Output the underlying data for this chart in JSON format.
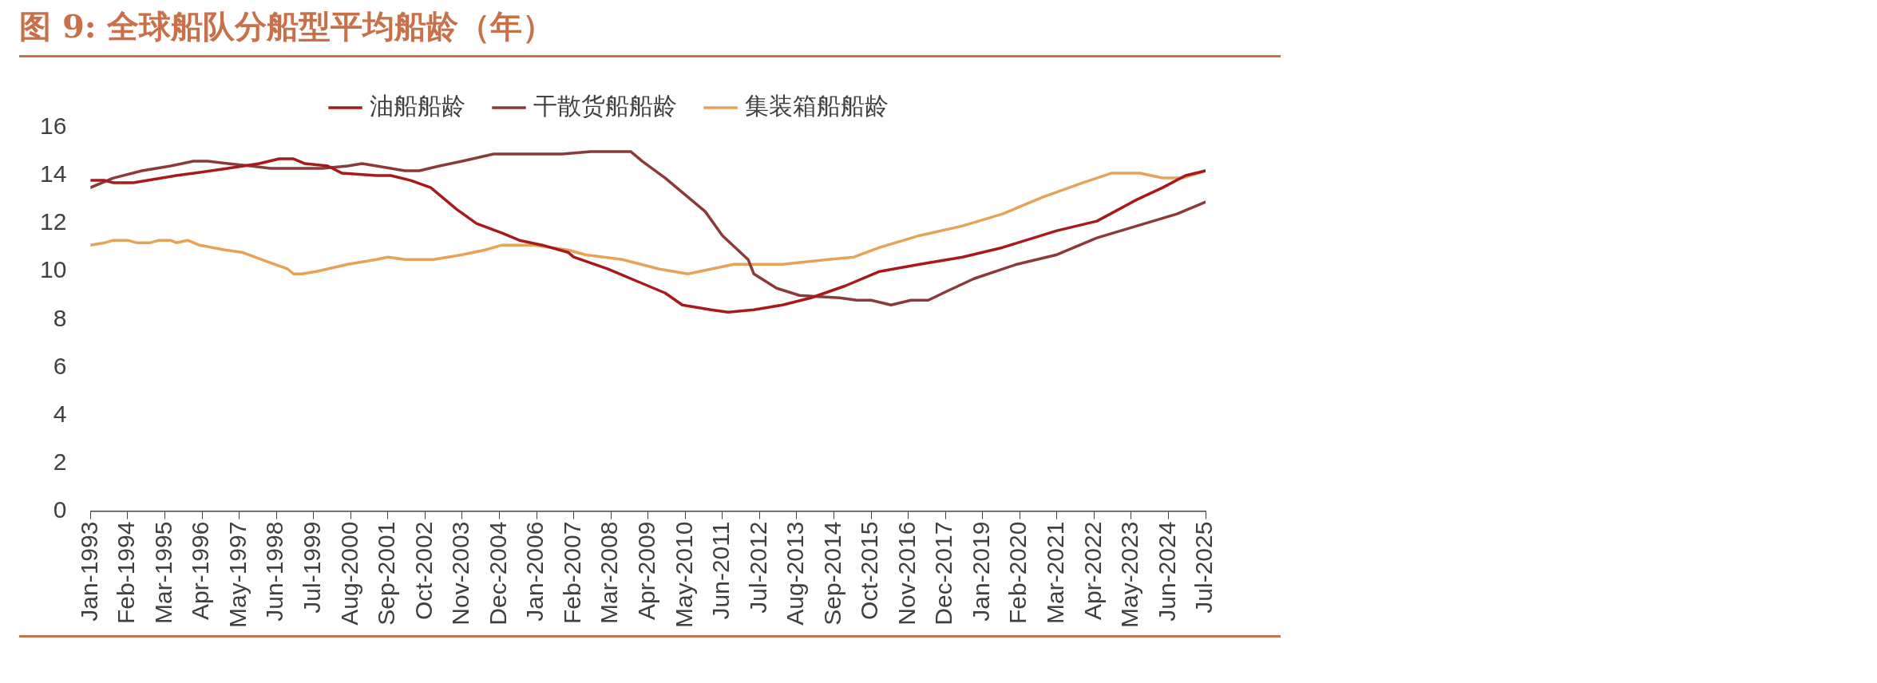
{
  "chart_data": {
    "type": "line",
    "title": "图 9: 全球船队分船型平均船龄（年）",
    "legend": "top",
    "grid": false,
    "marker": "none",
    "line_style": "solid",
    "xlim": [
      "1993-01",
      "2025-07"
    ],
    "xticks": [
      {
        "value": "1993-01",
        "label": "Jan-1993"
      },
      {
        "value": "1994-02",
        "label": "Feb-1994"
      },
      {
        "value": "1995-03",
        "label": "Mar-1995"
      },
      {
        "value": "1996-04",
        "label": "Apr-1996"
      },
      {
        "value": "1997-05",
        "label": "May-1997"
      },
      {
        "value": "1998-06",
        "label": "Jun-1998"
      },
      {
        "value": "1999-07",
        "label": "Jul-1999"
      },
      {
        "value": "2000-08",
        "label": "Aug-2000"
      },
      {
        "value": "2001-09",
        "label": "Sep-2001"
      },
      {
        "value": "2002-10",
        "label": "Oct-2002"
      },
      {
        "value": "2003-11",
        "label": "Nov-2003"
      },
      {
        "value": "2004-12",
        "label": "Dec-2004"
      },
      {
        "value": "2006-01",
        "label": "Jan-2006"
      },
      {
        "value": "2007-02",
        "label": "Feb-2007"
      },
      {
        "value": "2008-03",
        "label": "Mar-2008"
      },
      {
        "value": "2009-04",
        "label": "Apr-2009"
      },
      {
        "value": "2010-05",
        "label": "May-2010"
      },
      {
        "value": "2011-06",
        "label": "Jun-2011"
      },
      {
        "value": "2012-07",
        "label": "Jul-2012"
      },
      {
        "value": "2013-08",
        "label": "Aug-2013"
      },
      {
        "value": "2014-09",
        "label": "Sep-2014"
      },
      {
        "value": "2015-10",
        "label": "Oct-2015"
      },
      {
        "value": "2016-11",
        "label": "Nov-2016"
      },
      {
        "value": "2017-12",
        "label": "Dec-2017"
      },
      {
        "value": "2019-01",
        "label": "Jan-2019"
      },
      {
        "value": "2020-02",
        "label": "Feb-2020"
      },
      {
        "value": "2021-03",
        "label": "Mar-2021"
      },
      {
        "value": "2022-04",
        "label": "Apr-2022"
      },
      {
        "value": "2023-05",
        "label": "May-2023"
      },
      {
        "value": "2024-06",
        "label": "Jun-2024"
      },
      {
        "value": "2025-07",
        "label": "Jul-2025"
      }
    ],
    "ylim": [
      0,
      16
    ],
    "yticks": [
      0,
      2,
      4,
      6,
      8,
      10,
      12,
      14,
      16
    ],
    "series": [
      {
        "name": "油船船龄",
        "color": "#a8191c",
        "x": [
          "1993-01",
          "1993-06",
          "1993-09",
          "1994-04",
          "1995-07",
          "1997-01",
          "1997-12",
          "1998-07",
          "1998-12",
          "1999-04",
          "1999-12",
          "2000-05",
          "2001-05",
          "2001-10",
          "2002-05",
          "2002-12",
          "2003-09",
          "2004-04",
          "2005-01",
          "2005-07",
          "2006-03",
          "2006-12",
          "2007-02",
          "2008-02",
          "2008-12",
          "2009-10",
          "2010-04",
          "2011-02",
          "2011-08",
          "2012-05",
          "2013-03",
          "2014-01",
          "2015-01",
          "2016-01",
          "2017-03",
          "2018-06",
          "2019-08",
          "2021-03",
          "2022-05",
          "2023-07",
          "2024-04",
          "2024-12",
          "2025-07"
        ],
        "values": [
          13.8,
          13.8,
          13.7,
          13.7,
          14.0,
          14.3,
          14.5,
          14.7,
          14.7,
          14.5,
          14.4,
          14.1,
          14.0,
          14.0,
          13.8,
          13.5,
          12.6,
          12.0,
          11.6,
          11.3,
          11.1,
          10.8,
          10.6,
          10.1,
          9.6,
          9.1,
          8.6,
          8.4,
          8.3,
          8.4,
          8.6,
          8.9,
          9.4,
          10.0,
          10.3,
          10.6,
          11.0,
          11.7,
          12.1,
          13.0,
          13.5,
          14.0,
          14.2
        ]
      },
      {
        "name": "干散货船船龄",
        "color": "#8b3a3a",
        "x": [
          "1993-01",
          "1993-09",
          "1994-07",
          "1995-05",
          "1996-01",
          "1996-06",
          "1997-01",
          "1997-09",
          "1998-04",
          "1999-10",
          "2000-07",
          "2000-12",
          "2001-10",
          "2002-03",
          "2002-08",
          "2003-03",
          "2003-11",
          "2004-10",
          "2006-10",
          "2007-08",
          "2008-10",
          "2009-02",
          "2009-10",
          "2010-05",
          "2010-12",
          "2011-06",
          "2012-03",
          "2012-05",
          "2013-01",
          "2013-09",
          "2014-11",
          "2015-05",
          "2015-10",
          "2016-05",
          "2016-12",
          "2017-06",
          "2018-01",
          "2018-10",
          "2020-01",
          "2021-03",
          "2022-05",
          "2023-07",
          "2024-09",
          "2025-07"
        ],
        "values": [
          13.5,
          13.9,
          14.2,
          14.4,
          14.6,
          14.6,
          14.5,
          14.4,
          14.3,
          14.3,
          14.4,
          14.5,
          14.3,
          14.2,
          14.2,
          14.4,
          14.6,
          14.9,
          14.9,
          15.0,
          15.0,
          14.6,
          13.9,
          13.2,
          12.5,
          11.5,
          10.5,
          9.9,
          9.3,
          9.0,
          8.9,
          8.8,
          8.8,
          8.6,
          8.8,
          8.8,
          9.2,
          9.7,
          10.3,
          10.7,
          11.4,
          11.9,
          12.4,
          12.9
        ]
      },
      {
        "name": "集装箱船船龄",
        "color": "#e6a257",
        "x": [
          "1993-01",
          "1993-06",
          "1993-09",
          "1994-02",
          "1994-05",
          "1994-10",
          "1995-01",
          "1995-05",
          "1995-07",
          "1995-11",
          "1996-03",
          "1996-12",
          "1997-06",
          "1998-03",
          "1998-10",
          "1998-12",
          "1999-03",
          "1999-08",
          "2000-07",
          "2001-05",
          "2001-09",
          "2002-03",
          "2003-01",
          "2003-11",
          "2004-07",
          "2005-01",
          "2005-12",
          "2006-12",
          "2007-06",
          "2008-07",
          "2009-08",
          "2010-06",
          "2011-10",
          "2013-03",
          "2014-07",
          "2015-04",
          "2016-01",
          "2017-03",
          "2018-06",
          "2019-08",
          "2020-10",
          "2021-12",
          "2022-10",
          "2023-08",
          "2024-04",
          "2024-11",
          "2025-07"
        ],
        "values": [
          11.1,
          11.2,
          11.3,
          11.3,
          11.2,
          11.2,
          11.3,
          11.3,
          11.2,
          11.3,
          11.1,
          10.9,
          10.8,
          10.4,
          10.1,
          9.9,
          9.9,
          10.0,
          10.3,
          10.5,
          10.6,
          10.5,
          10.5,
          10.7,
          10.9,
          11.1,
          11.1,
          10.9,
          10.7,
          10.5,
          10.1,
          9.9,
          10.3,
          10.3,
          10.5,
          10.6,
          11.0,
          11.5,
          11.9,
          12.4,
          13.1,
          13.7,
          14.1,
          14.1,
          13.9,
          13.9,
          14.2
        ]
      }
    ]
  }
}
